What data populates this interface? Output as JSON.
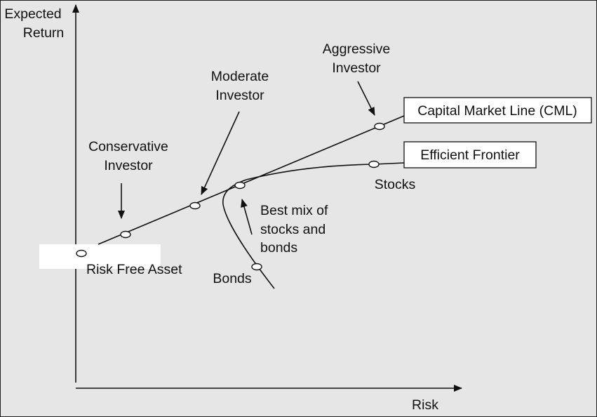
{
  "axes": {
    "y_label_line1": "Expected",
    "y_label_line2": "Return",
    "x_label": "Risk"
  },
  "labels": {
    "aggressive_line1": "Aggressive",
    "aggressive_line2": "Investor",
    "moderate_line1": "Moderate",
    "moderate_line2": "Investor",
    "conservative_line1": "Conservative",
    "conservative_line2": "Investor",
    "cml": "Capital Market Line (CML)",
    "efficient_frontier": "Efficient Frontier",
    "stocks": "Stocks",
    "best_mix_line1": "Best mix of",
    "best_mix_line2": "stocks and",
    "best_mix_line3": "bonds",
    "risk_free": "Risk Free Asset",
    "bonds": "Bonds"
  },
  "colors": {
    "background": "#e6e6e6",
    "frame": "#1e1e1e",
    "ink": "#111111",
    "label_box_fill": "#ffffff"
  }
}
